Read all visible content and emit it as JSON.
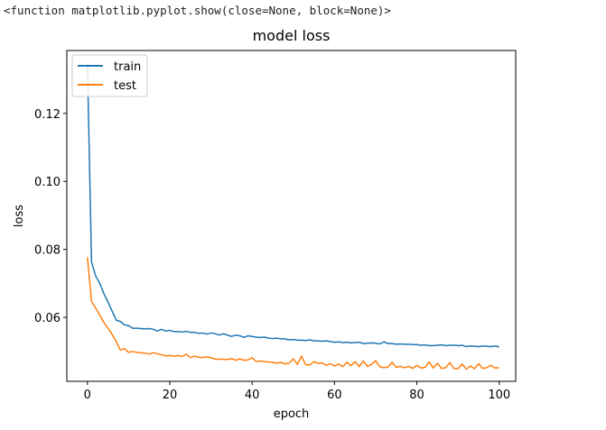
{
  "output_text": "<function matplotlib.pyplot.show(close=None, block=None)>",
  "chart_data": {
    "type": "line",
    "title": "model loss",
    "xlabel": "epoch",
    "ylabel": "loss",
    "xlim": [
      -5,
      104
    ],
    "ylim": [
      0.0412,
      0.1385
    ],
    "x_ticks": [
      0,
      20,
      40,
      60,
      80,
      100
    ],
    "y_ticks": [
      0.06,
      0.08,
      0.1,
      0.12
    ],
    "y_tick_labels": [
      "0.06",
      "0.08",
      "0.10",
      "0.12"
    ],
    "grid": false,
    "legend": "upper-left",
    "series": [
      {
        "name": "train",
        "color": "#1f77b4",
        "values": [
          0.1345,
          0.0763,
          0.0722,
          0.07,
          0.067,
          0.0645,
          0.0618,
          0.0592,
          0.0588,
          0.0578,
          0.0576,
          0.0568,
          0.0568,
          0.0567,
          0.0566,
          0.0567,
          0.0565,
          0.056,
          0.0565,
          0.056,
          0.0562,
          0.0558,
          0.0558,
          0.0557,
          0.0559,
          0.0556,
          0.0556,
          0.0553,
          0.0554,
          0.0551,
          0.0554,
          0.0552,
          0.0548,
          0.0552,
          0.0548,
          0.0544,
          0.0548,
          0.0546,
          0.0541,
          0.0546,
          0.0544,
          0.0542,
          0.0541,
          0.0542,
          0.0539,
          0.0538,
          0.0539,
          0.0537,
          0.0537,
          0.0534,
          0.0535,
          0.0533,
          0.0533,
          0.0532,
          0.0534,
          0.0531,
          0.0531,
          0.053,
          0.0531,
          0.0529,
          0.0527,
          0.0528,
          0.0526,
          0.0527,
          0.0525,
          0.0526,
          0.0527,
          0.0523,
          0.0524,
          0.0525,
          0.0524,
          0.0522,
          0.0528,
          0.0523,
          0.0523,
          0.0521,
          0.0522,
          0.0521,
          0.0521,
          0.052,
          0.052,
          0.0518,
          0.0519,
          0.0517,
          0.0517,
          0.0518,
          0.0519,
          0.0517,
          0.0518,
          0.0518,
          0.0517,
          0.0518,
          0.0514,
          0.0516,
          0.0515,
          0.0514,
          0.0516,
          0.0515,
          0.0514,
          0.0516,
          0.0513
        ]
      },
      {
        "name": "test",
        "color": "#ff7f0e",
        "values": [
          0.0777,
          0.0647,
          0.0627,
          0.0607,
          0.0585,
          0.0568,
          0.055,
          0.0528,
          0.0504,
          0.0508,
          0.0497,
          0.05,
          0.0497,
          0.0496,
          0.0495,
          0.0492,
          0.0496,
          0.0493,
          0.049,
          0.0487,
          0.0488,
          0.0486,
          0.0488,
          0.0485,
          0.0492,
          0.0482,
          0.0486,
          0.0483,
          0.0482,
          0.0484,
          0.0481,
          0.0478,
          0.0477,
          0.0477,
          0.0476,
          0.0479,
          0.0474,
          0.0478,
          0.0474,
          0.0475,
          0.0482,
          0.047,
          0.0472,
          0.047,
          0.0469,
          0.0468,
          0.0465,
          0.0468,
          0.0463,
          0.0466,
          0.0478,
          0.0462,
          0.0486,
          0.0461,
          0.046,
          0.047,
          0.0465,
          0.0466,
          0.0459,
          0.0464,
          0.0457,
          0.0463,
          0.0455,
          0.0468,
          0.0458,
          0.047,
          0.0455,
          0.0472,
          0.0456,
          0.0462,
          0.0473,
          0.0455,
          0.0452,
          0.0454,
          0.0468,
          0.0453,
          0.0456,
          0.0452,
          0.0456,
          0.045,
          0.0459,
          0.0451,
          0.0453,
          0.0469,
          0.0451,
          0.0465,
          0.045,
          0.0452,
          0.0467,
          0.045,
          0.0449,
          0.0463,
          0.0448,
          0.0457,
          0.0449,
          0.0464,
          0.045,
          0.0452,
          0.0459,
          0.0451,
          0.0452
        ]
      }
    ]
  }
}
